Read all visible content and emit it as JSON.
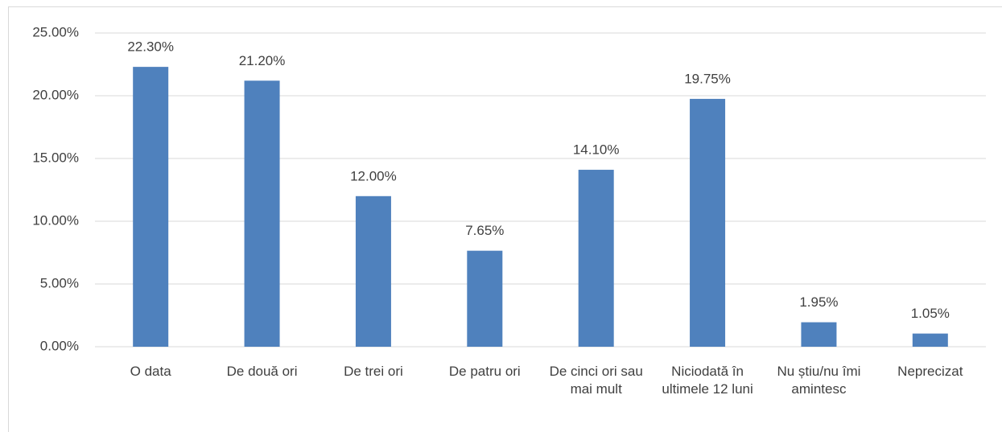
{
  "chart_data": {
    "type": "bar",
    "categories": [
      "O data",
      "De două ori",
      "De trei ori",
      "De patru ori",
      "De cinci ori sau mai mult",
      "Niciodată în ultimele 12 luni",
      "Nu știu/nu îmi amintesc",
      "Neprecizat"
    ],
    "values": [
      22.3,
      21.2,
      12.0,
      7.65,
      14.1,
      19.75,
      1.95,
      1.05
    ],
    "value_labels": [
      "22.30%",
      "21.20%",
      "12.00%",
      "7.65%",
      "14.10%",
      "19.75%",
      "1.95%",
      "1.05%"
    ],
    "color": "#4f81bd",
    "ylim": [
      0,
      25
    ],
    "yticks": [
      {
        "value": 0,
        "label": "0.00%"
      },
      {
        "value": 5,
        "label": "5.00%"
      },
      {
        "value": 10,
        "label": "10.00%"
      },
      {
        "value": 15,
        "label": "15.00%"
      },
      {
        "value": 20,
        "label": "20.00%"
      },
      {
        "value": 25,
        "label": "25.00%"
      }
    ],
    "grid": true
  }
}
